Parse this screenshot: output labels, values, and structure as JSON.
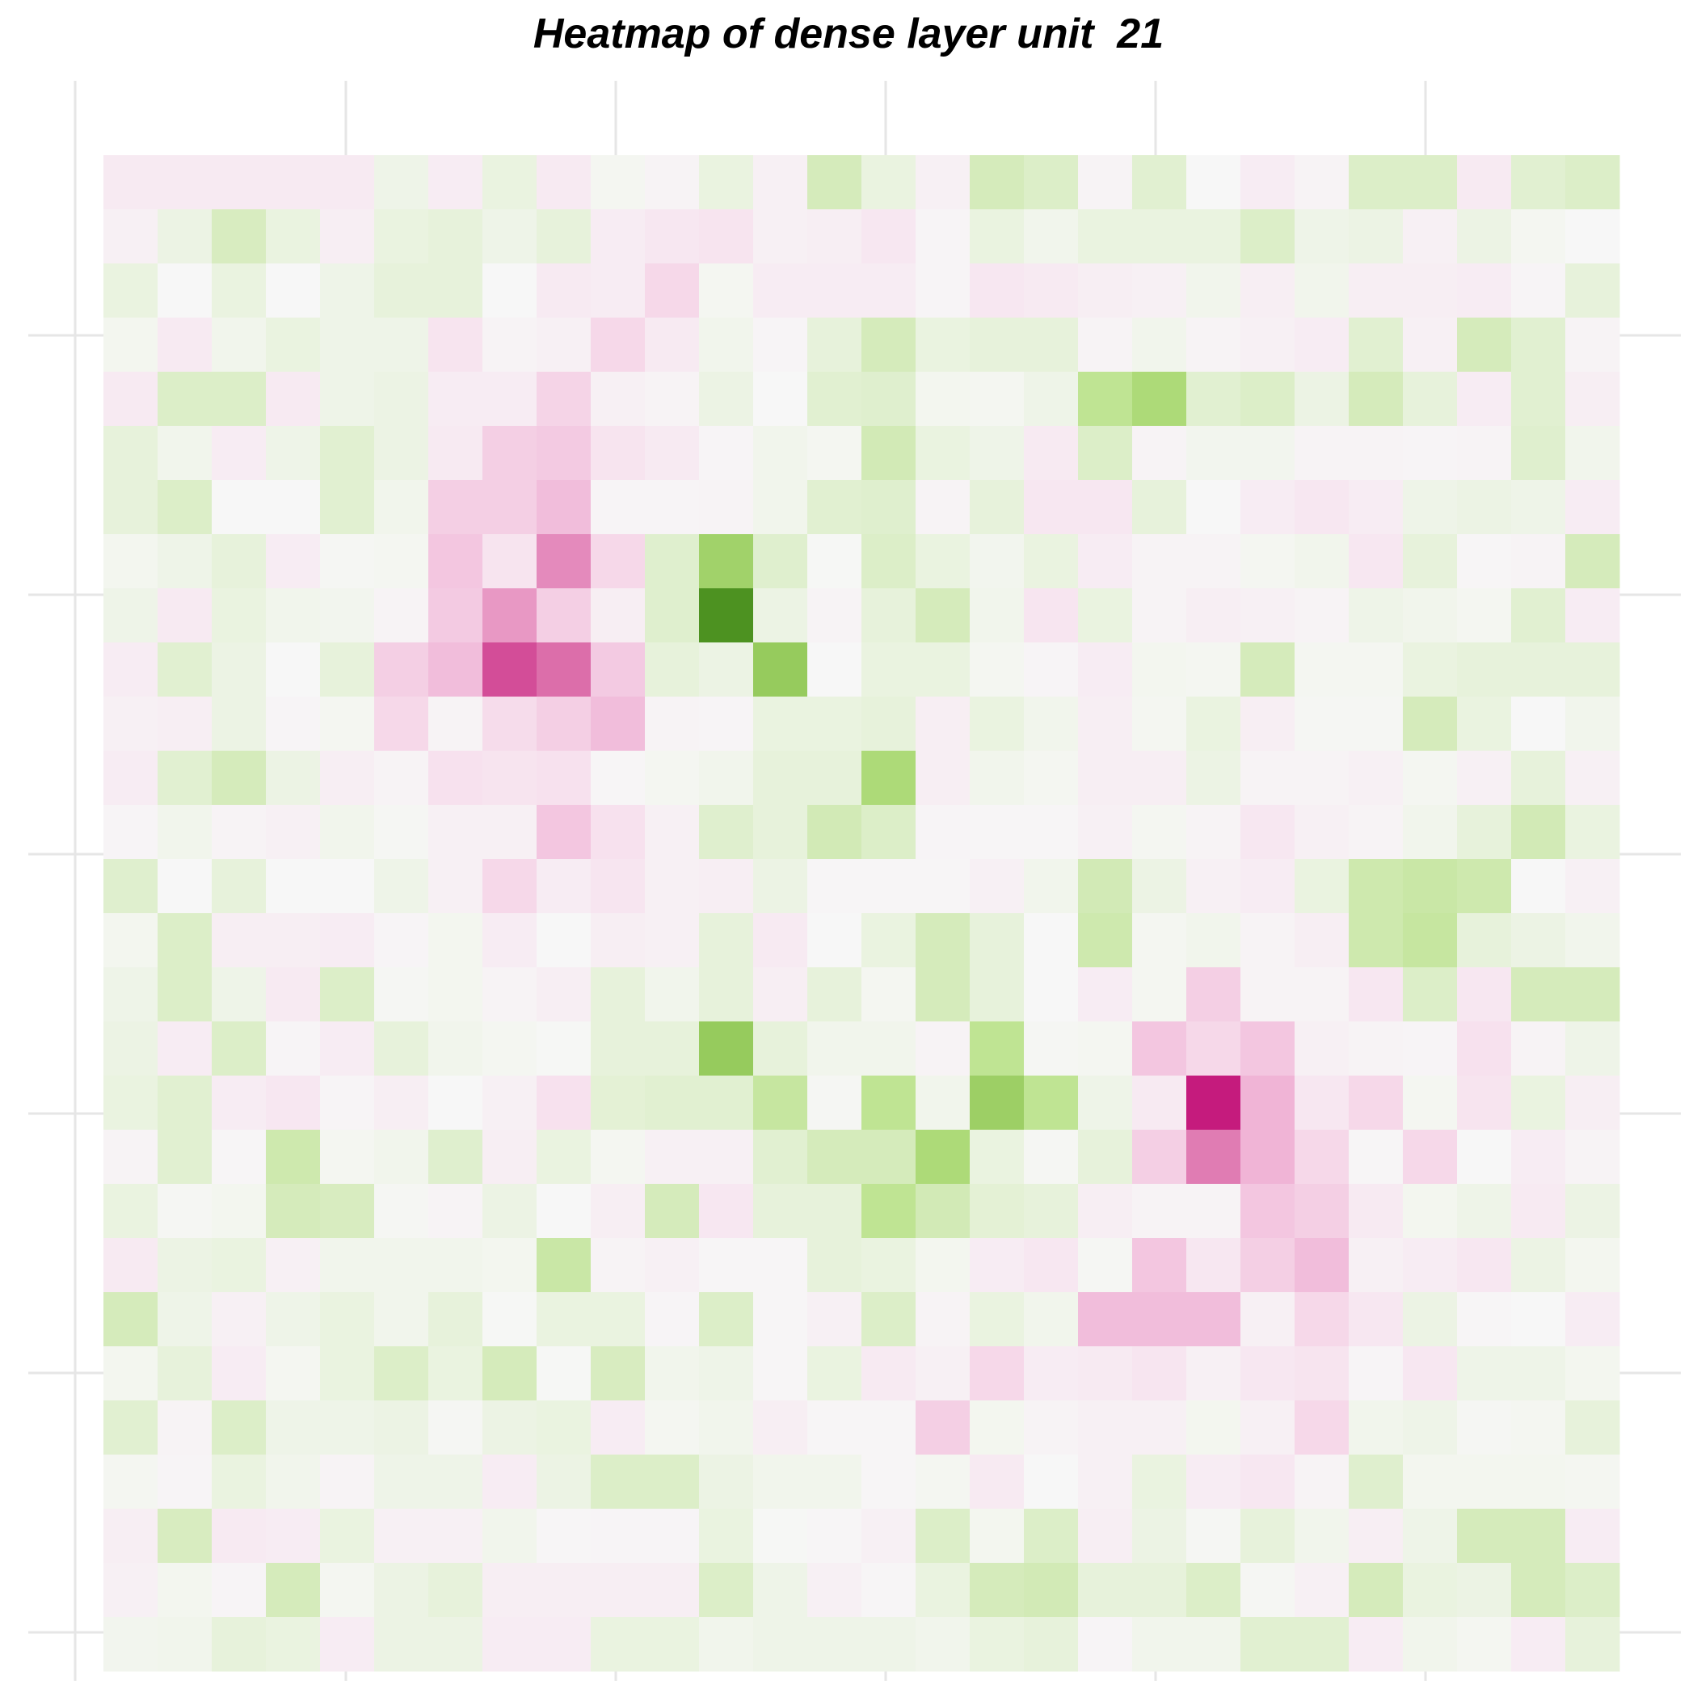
{
  "chart_data": {
    "type": "heatmap",
    "title": "Heatmap of dense layer unit  21",
    "xlabel": "",
    "ylabel": "",
    "rows": 28,
    "cols": 28,
    "grid": true,
    "legend": "none",
    "colormap": "diverging PiYG (magenta negative, white zero, green positive)",
    "value_range": [
      -1,
      1
    ],
    "values": [
      [
        -0.15,
        -0.15,
        -0.15,
        -0.15,
        -0.15,
        0.08,
        -0.12,
        0.12,
        -0.15,
        0.03,
        -0.05,
        0.12,
        -0.08,
        0.3,
        0.12,
        -0.08,
        0.3,
        0.25,
        -0.05,
        0.2,
        0,
        -0.12,
        -0.05,
        0.25,
        0.25,
        -0.15,
        0.2,
        0.25
      ],
      [
        -0.08,
        0.1,
        0.28,
        0.12,
        -0.1,
        0.12,
        0.15,
        0.08,
        0.15,
        -0.12,
        -0.18,
        -0.22,
        -0.08,
        -0.1,
        -0.18,
        -0.03,
        0.12,
        0.06,
        0.12,
        0.12,
        0.12,
        0.25,
        0.08,
        0.1,
        -0.08,
        0.1,
        0.03,
        0
      ],
      [
        0.12,
        0,
        0.12,
        0,
        0.08,
        0.15,
        0.15,
        0,
        -0.15,
        -0.12,
        -0.3,
        0.03,
        -0.12,
        -0.12,
        -0.12,
        -0.03,
        -0.18,
        -0.15,
        -0.1,
        -0.08,
        0.06,
        -0.1,
        0.06,
        -0.1,
        -0.1,
        -0.12,
        -0.03,
        0.15
      ],
      [
        0.04,
        -0.15,
        0.06,
        0.12,
        0.08,
        0.08,
        -0.22,
        -0.05,
        -0.08,
        -0.3,
        -0.15,
        0.06,
        -0.03,
        0.15,
        0.3,
        0.12,
        0.15,
        0.15,
        -0.05,
        0.06,
        -0.05,
        -0.08,
        -0.12,
        0.2,
        -0.08,
        0.3,
        0.2,
        -0.05
      ],
      [
        -0.15,
        0.25,
        0.25,
        -0.15,
        0.08,
        0.1,
        -0.12,
        -0.12,
        -0.32,
        -0.08,
        -0.05,
        0.1,
        0,
        0.2,
        0.22,
        0.04,
        0.03,
        0.08,
        0.45,
        0.55,
        0.2,
        0.25,
        0.1,
        0.3,
        0.15,
        -0.12,
        0.2,
        -0.1
      ],
      [
        0.15,
        0.06,
        -0.12,
        0.08,
        0.2,
        0.1,
        -0.15,
        -0.35,
        -0.38,
        -0.22,
        -0.15,
        -0.03,
        0.06,
        0.03,
        0.32,
        0.12,
        0.08,
        -0.15,
        0.25,
        -0.05,
        0.05,
        0.05,
        -0.05,
        -0.05,
        -0.03,
        -0.05,
        0.22,
        0.06
      ],
      [
        0.15,
        0.25,
        0,
        0,
        0.2,
        0.06,
        -0.35,
        -0.35,
        -0.45,
        -0.03,
        -0.03,
        -0.05,
        0.06,
        0.2,
        0.22,
        -0.05,
        0.15,
        -0.18,
        -0.18,
        0.15,
        0,
        -0.12,
        -0.18,
        -0.12,
        0.08,
        0.1,
        0.08,
        -0.12
      ],
      [
        0.04,
        0.08,
        0.15,
        -0.12,
        0.02,
        0.03,
        -0.4,
        -0.22,
        -0.65,
        -0.3,
        0.22,
        0.6,
        0.22,
        0.01,
        0.25,
        0.12,
        0.05,
        0.12,
        -0.12,
        -0.05,
        -0.05,
        0.03,
        0.06,
        -0.18,
        0.15,
        -0.02,
        -0.05,
        0.3
      ],
      [
        0.08,
        -0.15,
        0.12,
        0.06,
        0.05,
        -0.05,
        -0.38,
        -0.6,
        -0.35,
        -0.1,
        0.22,
        1.0,
        0.1,
        -0.05,
        0.15,
        0.3,
        0.06,
        -0.2,
        0.12,
        -0.05,
        -0.1,
        -0.08,
        -0.05,
        0.08,
        0.06,
        0.03,
        0.2,
        -0.12
      ],
      [
        -0.12,
        0.2,
        0.1,
        0,
        0.15,
        -0.35,
        -0.45,
        -0.85,
        -0.75,
        -0.38,
        0.15,
        0.1,
        0.65,
        0,
        0.12,
        0.12,
        0.03,
        -0.03,
        -0.12,
        0.04,
        0.03,
        0.3,
        0.03,
        0.03,
        0.12,
        0.15,
        0.15,
        0.15
      ],
      [
        -0.08,
        -0.1,
        0.1,
        -0.03,
        0.03,
        -0.3,
        -0.05,
        -0.28,
        -0.35,
        -0.45,
        -0.05,
        -0.03,
        0.12,
        0.12,
        0.15,
        -0.1,
        0.12,
        0.06,
        -0.1,
        0.03,
        0.12,
        -0.1,
        0.02,
        0.02,
        0.3,
        0.12,
        0,
        0.06
      ],
      [
        -0.12,
        0.2,
        0.3,
        0.1,
        -0.1,
        -0.05,
        -0.25,
        -0.22,
        -0.25,
        -0.02,
        0.03,
        0.06,
        0.15,
        0.15,
        0.55,
        -0.1,
        0.06,
        0.03,
        -0.1,
        -0.1,
        0.1,
        -0.05,
        -0.05,
        -0.08,
        0.03,
        -0.08,
        0.15,
        -0.08
      ],
      [
        -0.03,
        0.06,
        -0.05,
        -0.08,
        0.06,
        0.02,
        -0.08,
        -0.08,
        -0.4,
        -0.25,
        -0.08,
        0.22,
        0.15,
        0.32,
        0.25,
        -0.03,
        -0.02,
        -0.02,
        -0.08,
        0.03,
        -0.05,
        -0.18,
        -0.08,
        -0.05,
        0.06,
        0.15,
        0.32,
        0.12
      ],
      [
        0.22,
        0,
        0.15,
        0,
        0,
        0.08,
        -0.08,
        -0.3,
        -0.12,
        -0.2,
        -0.08,
        -0.1,
        0.1,
        -0.02,
        -0.02,
        -0.02,
        -0.08,
        0.06,
        0.32,
        0.1,
        -0.08,
        -0.12,
        0.12,
        0.35,
        0.38,
        0.35,
        0,
        -0.08
      ],
      [
        0.04,
        0.25,
        -0.1,
        -0.1,
        -0.12,
        -0.03,
        0.04,
        -0.12,
        0,
        -0.1,
        -0.08,
        0.15,
        -0.15,
        0,
        0.12,
        0.3,
        0.15,
        0,
        0.35,
        0.03,
        0.06,
        -0.05,
        -0.1,
        0.35,
        0.4,
        0.15,
        0.1,
        0.06
      ],
      [
        0.08,
        0.25,
        0.08,
        -0.15,
        0.25,
        0.02,
        0.04,
        -0.05,
        -0.1,
        0.15,
        0.06,
        0.15,
        -0.1,
        0.15,
        0.03,
        0.3,
        0.15,
        0,
        -0.12,
        0.03,
        -0.35,
        -0.05,
        -0.05,
        -0.18,
        0.25,
        -0.18,
        0.3,
        0.3
      ],
      [
        0.1,
        -0.12,
        0.25,
        -0.03,
        -0.12,
        0.15,
        0.06,
        0.03,
        0.01,
        0.15,
        0.15,
        0.65,
        0.15,
        0.06,
        0.06,
        -0.05,
        0.45,
        0.02,
        0.03,
        -0.4,
        -0.3,
        -0.4,
        -0.08,
        -0.05,
        -0.03,
        -0.25,
        -0.05,
        0.08
      ],
      [
        0.12,
        0.2,
        -0.12,
        -0.18,
        -0.03,
        -0.1,
        0,
        -0.08,
        -0.25,
        0.18,
        0.2,
        0.2,
        0.4,
        0.02,
        0.45,
        0.06,
        0.62,
        0.45,
        0.08,
        -0.15,
        -1.0,
        -0.5,
        -0.18,
        -0.3,
        0.03,
        -0.22,
        0.12,
        -0.1
      ],
      [
        -0.05,
        0.2,
        -0.02,
        0.35,
        0.03,
        0.06,
        0.22,
        -0.1,
        0.12,
        0.03,
        -0.08,
        -0.08,
        0.2,
        0.3,
        0.3,
        0.55,
        0.12,
        0.02,
        0.15,
        -0.35,
        -0.7,
        -0.5,
        -0.3,
        -0.02,
        -0.3,
        0,
        -0.12,
        -0.05
      ],
      [
        0.12,
        0.02,
        0.04,
        0.3,
        0.28,
        0.02,
        -0.05,
        0.1,
        0,
        -0.1,
        0.3,
        -0.18,
        0.15,
        0.15,
        0.45,
        0.32,
        0.18,
        0.15,
        -0.1,
        -0.05,
        -0.05,
        -0.4,
        -0.35,
        -0.15,
        0.04,
        0.08,
        -0.15,
        0.1
      ],
      [
        -0.15,
        0.1,
        0.12,
        -0.08,
        0.06,
        0.06,
        0.06,
        0.04,
        0.38,
        -0.05,
        -0.08,
        -0.02,
        -0.02,
        0.15,
        0.12,
        0.04,
        -0.12,
        -0.18,
        0.02,
        -0.4,
        -0.18,
        -0.35,
        -0.45,
        -0.08,
        -0.12,
        -0.18,
        0.1,
        0.04
      ],
      [
        0.3,
        0.08,
        -0.08,
        0.08,
        0.12,
        0.06,
        0.15,
        0.01,
        0.12,
        0.12,
        -0.03,
        0.25,
        -0.02,
        -0.08,
        0.25,
        -0.05,
        0.12,
        0.06,
        -0.45,
        -0.45,
        -0.45,
        -0.08,
        -0.3,
        -0.18,
        0.1,
        -0.02,
        0,
        -0.12
      ],
      [
        0.04,
        0.15,
        -0.12,
        0.03,
        0.12,
        0.25,
        0.12,
        0.3,
        0.01,
        0.28,
        0.06,
        0.08,
        -0.02,
        0.12,
        -0.15,
        -0.08,
        -0.3,
        -0.12,
        -0.15,
        -0.2,
        -0.08,
        -0.18,
        -0.22,
        -0.03,
        -0.18,
        0.08,
        0.08,
        0.04
      ],
      [
        0.2,
        -0.05,
        0.25,
        0.08,
        0.08,
        0.1,
        0.02,
        0.1,
        0.12,
        -0.12,
        0.03,
        0.06,
        -0.1,
        -0.02,
        -0.02,
        -0.35,
        0.04,
        -0.05,
        -0.08,
        -0.08,
        0.04,
        -0.08,
        -0.3,
        0.06,
        0.08,
        0.02,
        0.03,
        0.15
      ],
      [
        0.03,
        -0.03,
        0.12,
        0.06,
        -0.05,
        0.08,
        0.08,
        -0.12,
        0.1,
        0.25,
        0.25,
        0.1,
        0.06,
        0.06,
        -0.02,
        0.03,
        -0.15,
        0,
        -0.08,
        0.12,
        -0.12,
        -0.18,
        -0.05,
        0.22,
        0.04,
        0.04,
        0.04,
        0.03
      ],
      [
        -0.1,
        0.28,
        -0.15,
        -0.12,
        0.12,
        -0.08,
        -0.08,
        0.06,
        -0.02,
        -0.03,
        -0.03,
        0.12,
        0.01,
        -0.02,
        -0.08,
        0.25,
        0.04,
        0.25,
        -0.1,
        0.1,
        0.02,
        0.15,
        0.06,
        -0.1,
        0.08,
        0.3,
        0.3,
        -0.12
      ],
      [
        -0.08,
        0.04,
        -0.03,
        0.3,
        0.03,
        0.1,
        0.15,
        -0.1,
        -0.1,
        -0.1,
        -0.1,
        0.25,
        0.08,
        -0.08,
        -0.02,
        0.12,
        0.3,
        0.32,
        0.15,
        0.15,
        0.25,
        0.02,
        -0.08,
        0.3,
        0.12,
        0.1,
        0.3,
        0.25
      ],
      [
        0.05,
        0.06,
        0.15,
        0.12,
        -0.12,
        0.1,
        0.1,
        -0.12,
        -0.12,
        0.12,
        0.12,
        0.06,
        0.08,
        0.08,
        0.08,
        0.06,
        0.12,
        0.15,
        -0.03,
        0.06,
        0.06,
        0.2,
        0.2,
        -0.12,
        0.06,
        0.03,
        -0.12,
        0.15
      ]
    ]
  }
}
